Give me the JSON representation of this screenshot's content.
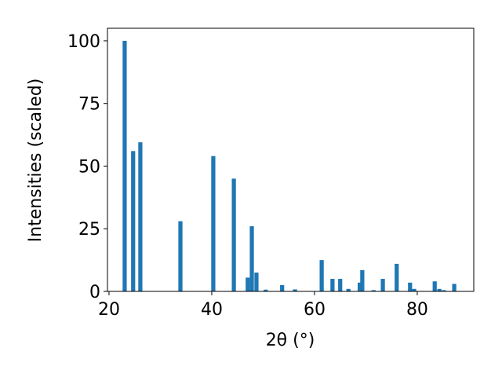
{
  "chart_data": {
    "type": "bar",
    "xlabel": "2θ (°)",
    "ylabel": "Intensities (scaled)",
    "color": "#1f77b4",
    "bar_width": 0.8,
    "x": [
      23.05,
      24.7,
      26.1,
      33.9,
      40.3,
      44.3,
      47.0,
      47.8,
      48.7,
      50.5,
      53.7,
      56.2,
      61.4,
      63.5,
      65.0,
      66.6,
      68.8,
      69.3,
      71.5,
      73.3,
      76.0,
      78.6,
      79.4,
      83.4,
      84.3,
      85.2,
      87.2
    ],
    "values": [
      100,
      56,
      59.5,
      28,
      54,
      45,
      5.5,
      26,
      7.5,
      0.7,
      2.5,
      0.8,
      12.5,
      5,
      5,
      1,
      3.5,
      8.5,
      0.5,
      5,
      11,
      3.5,
      1,
      4,
      1,
      0.5,
      3
    ],
    "xlim": [
      19.7,
      91
    ],
    "ylim": [
      0,
      105
    ],
    "xticks": [
      20,
      40,
      60,
      80
    ],
    "yticks": [
      0,
      25,
      50,
      75,
      100
    ]
  }
}
